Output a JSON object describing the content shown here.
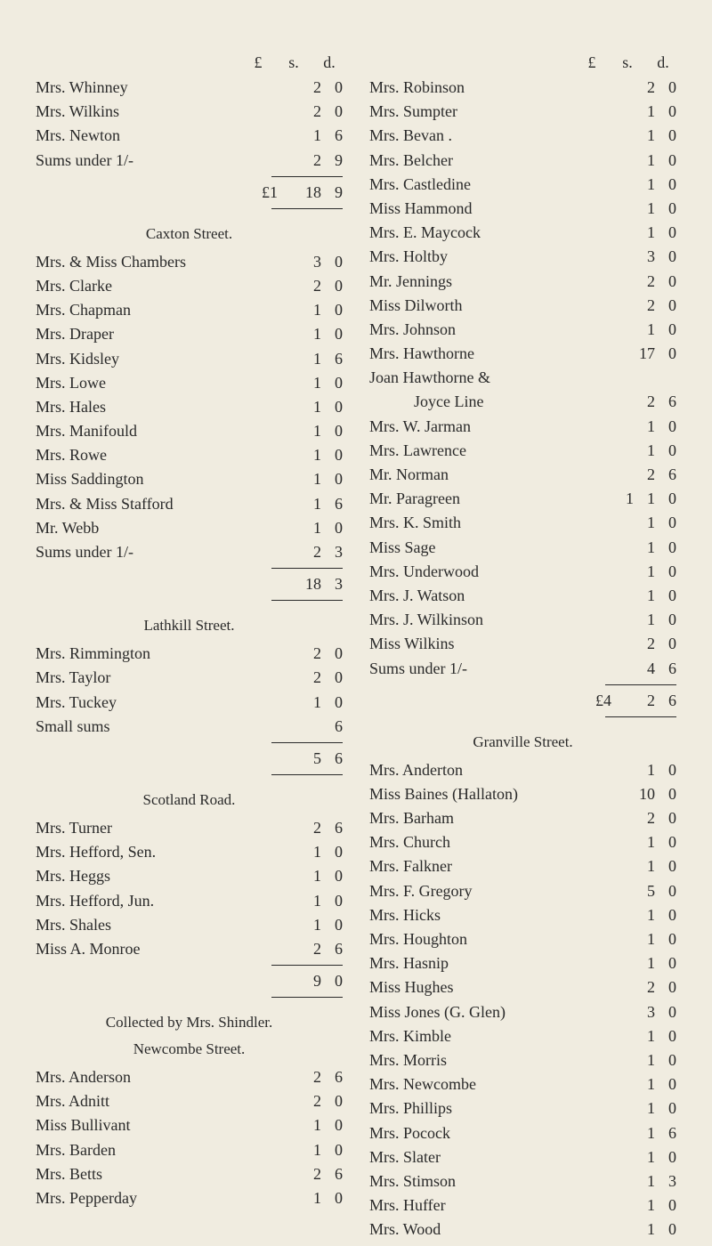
{
  "currency_header": {
    "pound": "£",
    "s": "s.",
    "d": "d."
  },
  "left": {
    "group1": {
      "rows": [
        {
          "name": "Mrs. Whinney",
          "s": "2",
          "d": "0"
        },
        {
          "name": "Mrs. Wilkins",
          "s": "2",
          "d": "0"
        },
        {
          "name": "Mrs. Newton",
          "s": "1",
          "d": "6"
        },
        {
          "name": "Sums under 1/-",
          "s": "2",
          "d": "9"
        }
      ],
      "total": {
        "prefix": "£1",
        "s": "18",
        "d": "9"
      }
    },
    "caxton": {
      "title": "Caxton Street.",
      "rows": [
        {
          "name": "Mrs. & Miss Chambers",
          "s": "3",
          "d": "0"
        },
        {
          "name": "Mrs. Clarke",
          "s": "2",
          "d": "0"
        },
        {
          "name": "Mrs. Chapman",
          "s": "1",
          "d": "0"
        },
        {
          "name": "Mrs. Draper",
          "s": "1",
          "d": "0"
        },
        {
          "name": "Mrs. Kidsley",
          "s": "1",
          "d": "6"
        },
        {
          "name": "Mrs. Lowe",
          "s": "1",
          "d": "0"
        },
        {
          "name": "Mrs. Hales",
          "s": "1",
          "d": "0"
        },
        {
          "name": "Mrs. Manifould",
          "s": "1",
          "d": "0"
        },
        {
          "name": "Mrs. Rowe",
          "s": "1",
          "d": "0"
        },
        {
          "name": "Miss Saddington",
          "s": "1",
          "d": "0"
        },
        {
          "name": "Mrs. & Miss Stafford",
          "s": "1",
          "d": "6"
        },
        {
          "name": "Mr. Webb",
          "s": "1",
          "d": "0"
        },
        {
          "name": "Sums under 1/-",
          "s": "2",
          "d": "3"
        }
      ],
      "total": {
        "s": "18",
        "d": "3"
      }
    },
    "lathkill": {
      "title": "Lathkill Street.",
      "rows": [
        {
          "name": "Mrs. Rimmington",
          "s": "2",
          "d": "0"
        },
        {
          "name": "Mrs. Taylor",
          "s": "2",
          "d": "0"
        },
        {
          "name": "Mrs. Tuckey",
          "s": "1",
          "d": "0"
        },
        {
          "name": "Small sums",
          "s": "",
          "d": "6"
        }
      ],
      "total": {
        "s": "5",
        "d": "6"
      }
    },
    "scotland": {
      "title": "Scotland Road.",
      "rows": [
        {
          "name": "Mrs. Turner",
          "s": "2",
          "d": "6"
        },
        {
          "name": "Mrs. Hefford, Sen.",
          "s": "1",
          "d": "0"
        },
        {
          "name": "Mrs. Heggs",
          "s": "1",
          "d": "0"
        },
        {
          "name": "Mrs. Hefford, Jun.",
          "s": "1",
          "d": "0"
        },
        {
          "name": "Mrs. Shales",
          "s": "1",
          "d": "0"
        },
        {
          "name": "Miss A. Monroe",
          "s": "2",
          "d": "6"
        }
      ],
      "total": {
        "s": "9",
        "d": "0"
      }
    },
    "shindler": {
      "title1": "Collected by Mrs. Shindler.",
      "title2": "Newcombe Street.",
      "rows": [
        {
          "name": "Mrs. Anderson",
          "s": "2",
          "d": "6"
        },
        {
          "name": "Mrs. Adnitt",
          "s": "2",
          "d": "0"
        },
        {
          "name": "Miss Bullivant",
          "s": "1",
          "d": "0"
        },
        {
          "name": "Mrs. Barden",
          "s": "1",
          "d": "0"
        },
        {
          "name": "Mrs. Betts",
          "s": "2",
          "d": "6"
        },
        {
          "name": "Mrs. Pepperday",
          "s": "1",
          "d": "0"
        }
      ]
    }
  },
  "right": {
    "group1": {
      "rows": [
        {
          "name": "Mrs. Robinson",
          "s": "2",
          "d": "0"
        },
        {
          "name": "Mrs. Sumpter",
          "s": "1",
          "d": "0"
        },
        {
          "name": "Mrs. Bevan .",
          "s": "1",
          "d": "0"
        },
        {
          "name": "Mrs. Belcher",
          "s": "1",
          "d": "0"
        },
        {
          "name": "Mrs. Castledine",
          "s": "1",
          "d": "0"
        },
        {
          "name": "Miss Hammond",
          "s": "1",
          "d": "0"
        },
        {
          "name": "Mrs. E. Maycock",
          "s": "1",
          "d": "0"
        },
        {
          "name": "Mrs. Holtby",
          "s": "3",
          "d": "0"
        },
        {
          "name": "Mr. Jennings",
          "s": "2",
          "d": "0"
        },
        {
          "name": "Miss Dilworth",
          "s": "2",
          "d": "0"
        },
        {
          "name": "Mrs. Johnson",
          "s": "1",
          "d": "0"
        },
        {
          "name": "Mrs. Hawthorne",
          "s": "17",
          "d": "0"
        }
      ],
      "joan": "Joan Hawthorne &",
      "joyce": "Joyce Line",
      "joyce_amt": {
        "s": "2",
        "d": "6"
      },
      "rows2": [
        {
          "name": "Mrs. W. Jarman",
          "s": "1",
          "d": "0"
        },
        {
          "name": "Mrs. Lawrence",
          "s": "1",
          "d": "0"
        },
        {
          "name": "Mr. Norman",
          "s": "2",
          "d": "6"
        },
        {
          "name": "Mr. Paragreen",
          "p": "1",
          "s": "1",
          "d": "0"
        },
        {
          "name": "Mrs. K. Smith",
          "s": "1",
          "d": "0"
        },
        {
          "name": "Miss Sage",
          "s": "1",
          "d": "0"
        },
        {
          "name": "Mrs. Underwood",
          "s": "1",
          "d": "0"
        },
        {
          "name": "Mrs. J. Watson",
          "s": "1",
          "d": "0"
        },
        {
          "name": "Mrs. J. Wilkinson",
          "s": "1",
          "d": "0"
        },
        {
          "name": "Miss Wilkins",
          "s": "2",
          "d": "0"
        },
        {
          "name": "Sums under 1/-",
          "s": "4",
          "d": "6"
        }
      ],
      "total": {
        "prefix": "£4",
        "s": "2",
        "d": "6"
      }
    },
    "granville": {
      "title": "Granville Street.",
      "rows": [
        {
          "name": "Mrs. Anderton",
          "s": "1",
          "d": "0"
        },
        {
          "name": "Miss Baines (Hallaton)",
          "s": "10",
          "d": "0"
        },
        {
          "name": "Mrs. Barham",
          "s": "2",
          "d": "0"
        },
        {
          "name": "Mrs. Church",
          "s": "1",
          "d": "0"
        },
        {
          "name": "Mrs. Falkner",
          "s": "1",
          "d": "0"
        },
        {
          "name": "Mrs. F. Gregory",
          "s": "5",
          "d": "0"
        },
        {
          "name": "Mrs. Hicks",
          "s": "1",
          "d": "0"
        },
        {
          "name": "Mrs. Houghton",
          "s": "1",
          "d": "0"
        },
        {
          "name": "Mrs. Hasnip",
          "s": "1",
          "d": "0"
        },
        {
          "name": "Miss Hughes",
          "s": "2",
          "d": "0"
        },
        {
          "name": "Miss Jones (G. Glen)",
          "s": "3",
          "d": "0"
        },
        {
          "name": "Mrs. Kimble",
          "s": "1",
          "d": "0"
        },
        {
          "name": "Mrs. Morris",
          "s": "1",
          "d": "0"
        },
        {
          "name": "Mrs. Newcombe",
          "s": "1",
          "d": "0"
        },
        {
          "name": "Mrs. Phillips",
          "s": "1",
          "d": "0"
        },
        {
          "name": "Mrs. Pocock",
          "s": "1",
          "d": "6"
        },
        {
          "name": "Mrs. Slater",
          "s": "1",
          "d": "0"
        },
        {
          "name": "Mrs. Stimson",
          "s": "1",
          "d": "3"
        },
        {
          "name": "Mrs. Huffer",
          "s": "1",
          "d": "0"
        },
        {
          "name": "Mrs. Wood",
          "s": "1",
          "d": "0"
        }
      ]
    }
  }
}
